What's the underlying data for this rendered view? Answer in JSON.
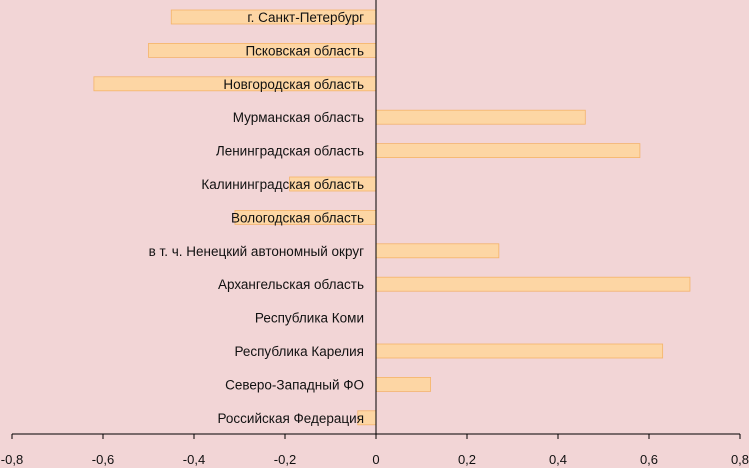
{
  "chart_data": {
    "type": "bar",
    "orientation": "horizontal",
    "title": "",
    "xlabel": "",
    "ylabel": "",
    "xlim": [
      -0.8,
      0.8
    ],
    "xticks": [
      "-0,8",
      "-0,6",
      "-0,4",
      "-0,2",
      "0",
      "0,2",
      "0,4",
      "0,6",
      "0,8"
    ],
    "xtick_values": [
      -0.8,
      -0.6,
      -0.4,
      -0.2,
      0,
      0.2,
      0.4,
      0.6,
      0.8
    ],
    "categories": [
      "г. Санкт-Петербург",
      "Псковская область",
      "Новгородская область",
      "Мурманская область",
      "Ленинградская область",
      "Калининградская область",
      "Вологодская область",
      "в т. ч. Ненецкий автономный округ",
      "Архангельская область",
      "Республика Коми",
      "Республика Карелия",
      "Северо-Западный ФО",
      "Российская Федерация"
    ],
    "values": [
      -0.45,
      -0.5,
      -0.62,
      0.46,
      0.58,
      -0.19,
      -0.31,
      0.27,
      0.69,
      0.0,
      0.63,
      0.12,
      -0.04
    ],
    "colors": {
      "bar_fill": "#fdd6a4",
      "bar_stroke": "#f4b36a",
      "background": "#f2d5d6",
      "axis": "#000000"
    },
    "grid": false,
    "legend": "none"
  }
}
